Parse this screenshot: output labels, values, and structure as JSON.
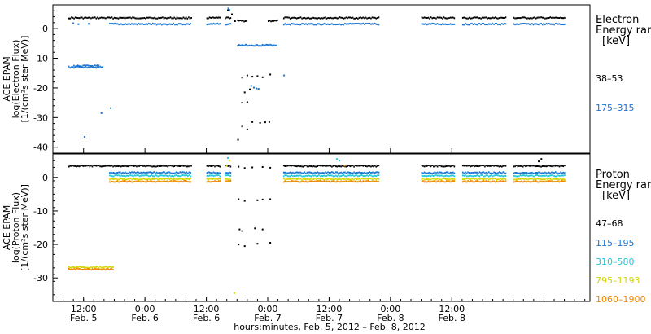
{
  "chart_data": [
    {
      "type": "scatter",
      "panel": "electron",
      "ylabel_lines": [
        "ACE EPAM",
        "log(Electron Flux)",
        "[1/(cm²s ster MeV)]"
      ],
      "ylim": [
        -42,
        8
      ],
      "yticks": [
        0,
        -10,
        -20,
        -30,
        -40
      ],
      "legend_title_lines": [
        "Electron",
        "Energy range",
        "[keV]"
      ],
      "series": [
        {
          "name": "38–53",
          "color": "#000000",
          "segments": [
            {
              "t0": 9.0,
              "t1": 33.0,
              "y": 3.6
            },
            {
              "t0": 36.0,
              "t1": 38.8,
              "y": 3.6
            },
            {
              "t0": 39.6,
              "t1": 40.8,
              "y": 3.6
            },
            {
              "t0": 42.0,
              "t1": 43.8,
              "y": 2.6
            },
            {
              "t0": 48.0,
              "t1": 49.8,
              "y": 2.6
            },
            {
              "t0": 51.0,
              "t1": 69.8,
              "y": 3.6
            },
            {
              "t0": 78.0,
              "t1": 84.6,
              "y": 3.6
            },
            {
              "t0": 86.0,
              "t1": 94.6,
              "y": 3.6
            },
            {
              "t0": 96.0,
              "t1": 106.0,
              "y": 3.6
            }
          ],
          "points": [
            [
              40.2,
              6.2
            ],
            [
              41.0,
              4.8
            ],
            [
              41.6,
              2.5
            ],
            [
              43.0,
              -16.5
            ],
            [
              44.0,
              -15.8
            ],
            [
              45.0,
              -16.2
            ],
            [
              46.0,
              -16.0
            ],
            [
              47.0,
              -16.4
            ],
            [
              48.5,
              -15.5
            ],
            [
              43.5,
              -21.5
            ],
            [
              44.5,
              -20.5
            ],
            [
              43.0,
              -25.0
            ],
            [
              44.0,
              -24.8
            ],
            [
              45.0,
              -31.5
            ],
            [
              46.5,
              -31.8
            ],
            [
              47.5,
              -31.6
            ],
            [
              48.3,
              -31.5
            ],
            [
              44.0,
              -34.0
            ],
            [
              43.0,
              -33.0
            ],
            [
              42.2,
              -37.5
            ]
          ]
        },
        {
          "name": "175–315",
          "color": "#1a74d2",
          "segments": [
            {
              "t0": 9.0,
              "t1": 15.8,
              "y": -13.0
            },
            {
              "t0": 10.0,
              "t1": 15.0,
              "y": -12.6
            },
            {
              "t0": 17.0,
              "t1": 33.0,
              "y": 1.5
            },
            {
              "t0": 36.0,
              "t1": 38.8,
              "y": 1.5
            },
            {
              "t0": 39.6,
              "t1": 40.8,
              "y": 1.5
            },
            {
              "t0": 42.0,
              "t1": 49.8,
              "y": -5.6
            },
            {
              "t0": 51.0,
              "t1": 69.8,
              "y": 1.5
            },
            {
              "t0": 78.0,
              "t1": 84.6,
              "y": 1.5
            },
            {
              "t0": 86.0,
              "t1": 94.6,
              "y": 1.5
            },
            {
              "t0": 96.0,
              "t1": 106.0,
              "y": 1.5
            }
          ],
          "points": [
            [
              10.0,
              1.8
            ],
            [
              11.0,
              1.5
            ],
            [
              13.0,
              1.6
            ],
            [
              40.3,
              6.8
            ],
            [
              40.5,
              6.3
            ],
            [
              44.8,
              -19.3
            ],
            [
              45.3,
              -19.9
            ],
            [
              45.8,
              -20.2
            ],
            [
              46.2,
              -20.3
            ],
            [
              51.2,
              -15.8
            ],
            [
              17.3,
              -26.8
            ],
            [
              15.5,
              -28.5
            ],
            [
              12.2,
              -36.5
            ]
          ]
        }
      ]
    },
    {
      "type": "scatter",
      "panel": "proton",
      "ylabel_lines": [
        "ACE EPAM",
        "log(Proton Flux)",
        "[1/(cm²s ster MeV)]"
      ],
      "ylim": [
        -37,
        7
      ],
      "yticks": [
        0,
        -10,
        -20,
        -30
      ],
      "legend_title_lines": [
        "Proton",
        "Energy range",
        "[keV]"
      ],
      "series": [
        {
          "name": "47–68",
          "color": "#000000",
          "segments": [
            {
              "t0": 9.0,
              "t1": 33.0,
              "y": 3.4
            },
            {
              "t0": 36.0,
              "t1": 38.8,
              "y": 3.4
            },
            {
              "t0": 39.6,
              "t1": 40.8,
              "y": 3.4
            },
            {
              "t0": 51.0,
              "t1": 69.8,
              "y": 3.4
            },
            {
              "t0": 78.0,
              "t1": 84.6,
              "y": 3.4
            },
            {
              "t0": 86.0,
              "t1": 94.6,
              "y": 3.4
            },
            {
              "t0": 96.0,
              "t1": 106.0,
              "y": 3.4
            }
          ],
          "points": [
            [
              42.3,
              3.2
            ],
            [
              43.5,
              2.8
            ],
            [
              45.0,
              3.0
            ],
            [
              47.0,
              3.1
            ],
            [
              48.5,
              2.9
            ],
            [
              42.3,
              -6.5
            ],
            [
              43.5,
              -7.0
            ],
            [
              46.0,
              -6.8
            ],
            [
              47.0,
              -6.6
            ],
            [
              48.5,
              -6.5
            ],
            [
              42.5,
              -15.5
            ],
            [
              43.0,
              -16.0
            ],
            [
              45.5,
              -15.2
            ],
            [
              47.0,
              -15.5
            ],
            [
              42.3,
              -20.0
            ],
            [
              43.5,
              -20.5
            ],
            [
              46.0,
              -19.8
            ],
            [
              48.5,
              -19.5
            ],
            [
              101.0,
              4.8
            ],
            [
              101.5,
              5.5
            ]
          ]
        },
        {
          "name": "115–195",
          "color": "#1a74d2",
          "segments": [
            {
              "t0": 17.0,
              "t1": 33.0,
              "y": 1.4
            },
            {
              "t0": 36.0,
              "t1": 38.8,
              "y": 1.4
            },
            {
              "t0": 39.6,
              "t1": 40.8,
              "y": 1.4
            },
            {
              "t0": 51.0,
              "t1": 69.8,
              "y": 1.4
            },
            {
              "t0": 78.0,
              "t1": 84.6,
              "y": 1.4
            },
            {
              "t0": 86.0,
              "t1": 94.6,
              "y": 1.4
            },
            {
              "t0": 96.0,
              "t1": 106.0,
              "y": 1.4
            }
          ],
          "points": []
        },
        {
          "name": "310–580",
          "color": "#22c8d8",
          "segments": [
            {
              "t0": 17.0,
              "t1": 33.0,
              "y": 0.5
            },
            {
              "t0": 36.0,
              "t1": 38.8,
              "y": 0.5
            },
            {
              "t0": 39.6,
              "t1": 40.8,
              "y": 0.5
            },
            {
              "t0": 51.0,
              "t1": 69.8,
              "y": 0.5
            },
            {
              "t0": 78.0,
              "t1": 84.6,
              "y": 0.5
            },
            {
              "t0": 86.0,
              "t1": 94.6,
              "y": 0.5
            },
            {
              "t0": 96.0,
              "t1": 106.0,
              "y": 0.5
            }
          ],
          "points": [
            [
              40.2,
              5.8
            ],
            [
              61.5,
              5.5
            ],
            [
              62.0,
              5.0
            ]
          ]
        },
        {
          "name": "795–1193",
          "color": "#d4d400",
          "segments": [
            {
              "t0": 9.0,
              "t1": 17.8,
              "y": -26.8
            },
            {
              "t0": 17.0,
              "t1": 33.0,
              "y": -0.5
            },
            {
              "t0": 36.0,
              "t1": 38.8,
              "y": -0.5
            },
            {
              "t0": 39.6,
              "t1": 40.8,
              "y": -0.5
            },
            {
              "t0": 51.0,
              "t1": 69.8,
              "y": -0.5
            },
            {
              "t0": 78.0,
              "t1": 84.6,
              "y": -0.5
            },
            {
              "t0": 86.0,
              "t1": 94.6,
              "y": -0.5
            },
            {
              "t0": 96.0,
              "t1": 106.0,
              "y": -0.5
            }
          ],
          "points": [
            [
              40.0,
              3.5
            ],
            [
              40.5,
              5.0
            ],
            [
              41.5,
              -34.5
            ]
          ]
        },
        {
          "name": "1060–1900",
          "color": "#f08a00",
          "segments": [
            {
              "t0": 9.0,
              "t1": 17.8,
              "y": -27.4
            },
            {
              "t0": 17.0,
              "t1": 33.0,
              "y": -1.2
            },
            {
              "t0": 36.0,
              "t1": 38.8,
              "y": -1.2
            },
            {
              "t0": 39.6,
              "t1": 40.8,
              "y": -1.2
            },
            {
              "t0": 51.0,
              "t1": 69.8,
              "y": -1.2
            },
            {
              "t0": 78.0,
              "t1": 84.6,
              "y": -1.2
            },
            {
              "t0": 86.0,
              "t1": 94.6,
              "y": -1.2
            },
            {
              "t0": 96.0,
              "t1": 106.0,
              "y": -1.2
            }
          ],
          "points": [
            [
              63.0,
              3.5
            ]
          ]
        }
      ]
    }
  ],
  "x_axis": {
    "range_hours": [
      6,
      111
    ],
    "ticks": [
      {
        "t": 12,
        "time": "12:00",
        "date": "Feb. 5"
      },
      {
        "t": 24,
        "time": "0:00",
        "date": "Feb. 6"
      },
      {
        "t": 36,
        "time": "12:00",
        "date": "Feb. 6"
      },
      {
        "t": 48,
        "time": "0:00",
        "date": "Feb. 7"
      },
      {
        "t": 60,
        "time": "12:00",
        "date": "Feb. 7"
      },
      {
        "t": 72,
        "time": "0:00",
        "date": "Feb. 8"
      },
      {
        "t": 84,
        "time": "12:00",
        "date": "Feb. 8"
      }
    ],
    "label": "hours:minutes, Feb. 5, 2012 – Feb. 8, 2012"
  }
}
